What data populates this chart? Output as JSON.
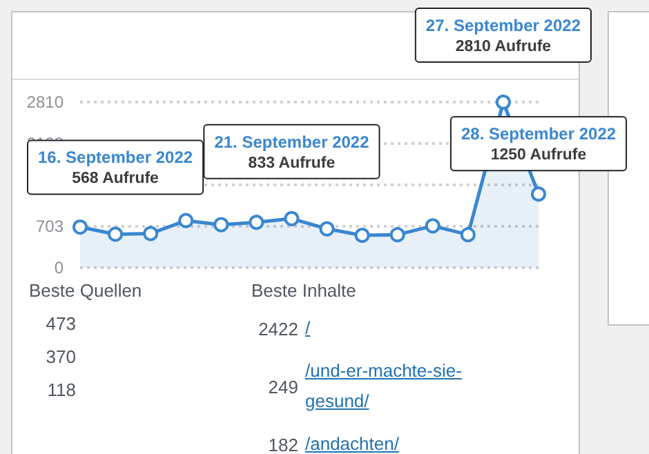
{
  "chart_data": {
    "type": "area",
    "categories": [
      null,
      null,
      null,
      null,
      null,
      null,
      null,
      null,
      null,
      null,
      null,
      null,
      null,
      null
    ],
    "values": [
      690,
      568,
      580,
      800,
      730,
      770,
      833,
      660,
      550,
      560,
      710,
      560,
      2810,
      1250
    ],
    "color": "#3a87d0",
    "ylim": [
      0,
      2810
    ],
    "yticks": [
      0,
      703,
      {
        "value": 1405,
        "label": null
      },
      2108,
      2810
    ],
    "grid": "y",
    "marker": "circle",
    "tick_labels": "y",
    "annotations": [
      {
        "text": "16. September 2022\n568 Aufrufe",
        "y": 568
      },
      {
        "text": "21. September 2022\n833 Aufrufe",
        "y": 833
      },
      {
        "text": "27. September 2022\n2810 Aufrufe",
        "y": 2810
      },
      {
        "text": "28. September 2022\n1250 Aufrufe",
        "y": 1250
      },
      "Beste Quellen",
      "473",
      "370",
      "118",
      "Beste Inhalte",
      "2422 /",
      "249 /und-er-machte-sie-gesund/",
      "182 /andachten/"
    ]
  }
}
